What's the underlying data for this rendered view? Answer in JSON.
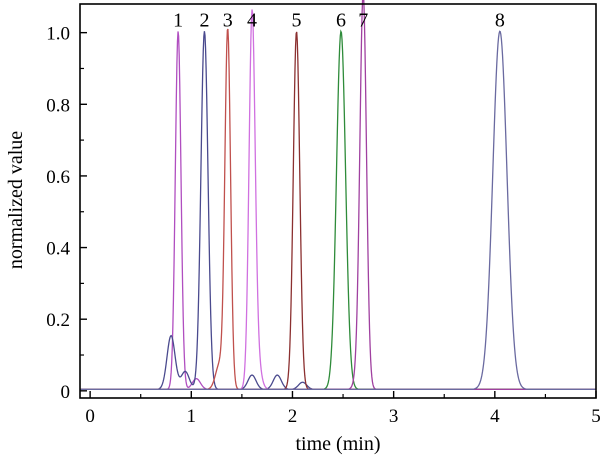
{
  "chart_data": {
    "type": "line",
    "title": "",
    "xlabel": "time (min)",
    "ylabel": "normalized value",
    "xlim": [
      -0.1,
      5.0
    ],
    "ylim": [
      -0.02,
      1.08
    ],
    "x_ticks": [
      0,
      1,
      2,
      3,
      4,
      5
    ],
    "y_ticks": [
      0,
      0.2,
      0.4,
      0.6,
      0.8,
      1.0
    ],
    "x_tick_labels": [
      "0",
      "1",
      "2",
      "3",
      "4",
      "5"
    ],
    "y_tick_labels": [
      "0",
      "0.2",
      "0.4",
      "0.6",
      "0.8",
      "1.0"
    ],
    "grid": false,
    "legend": "none",
    "series": [
      {
        "label": "1",
        "color": "#b04ec0",
        "apex_time": 0.87,
        "apex_value": 1.0,
        "width": 0.028,
        "minor_peaks": [
          [
            1.05,
            0.03
          ]
        ]
      },
      {
        "label": "2",
        "color": "#4a4a8e",
        "apex_time": 1.13,
        "apex_value": 1.0,
        "width": 0.035,
        "minor_peaks": [
          [
            0.8,
            0.15
          ],
          [
            0.94,
            0.05
          ],
          [
            1.6,
            0.04
          ],
          [
            1.85,
            0.04
          ],
          [
            2.1,
            0.02
          ]
        ]
      },
      {
        "label": "3",
        "color": "#c0504d",
        "apex_time": 1.36,
        "apex_value": 1.0,
        "width": 0.028,
        "minor_peaks": [
          [
            1.28,
            0.07
          ]
        ]
      },
      {
        "label": "4",
        "color": "#d070e0",
        "apex_time": 1.6,
        "apex_value": 1.0,
        "width": 0.03,
        "minor_peaks": [
          [
            1.64,
            0.1
          ]
        ]
      },
      {
        "label": "5",
        "color": "#8b3030",
        "apex_time": 2.04,
        "apex_value": 1.0,
        "width": 0.032,
        "minor_peaks": []
      },
      {
        "label": "6",
        "color": "#2e8b3a",
        "apex_time": 2.48,
        "apex_value": 1.0,
        "width": 0.045,
        "minor_peaks": []
      },
      {
        "label": "7",
        "color": "#a040a0",
        "apex_time": 2.7,
        "apex_value": 1.0,
        "width": 0.032,
        "minor_peaks": [
          [
            2.68,
            0.12
          ]
        ]
      },
      {
        "label": "8",
        "color": "#6a6aa0",
        "apex_time": 4.05,
        "apex_value": 1.0,
        "width": 0.07,
        "minor_peaks": []
      }
    ]
  }
}
